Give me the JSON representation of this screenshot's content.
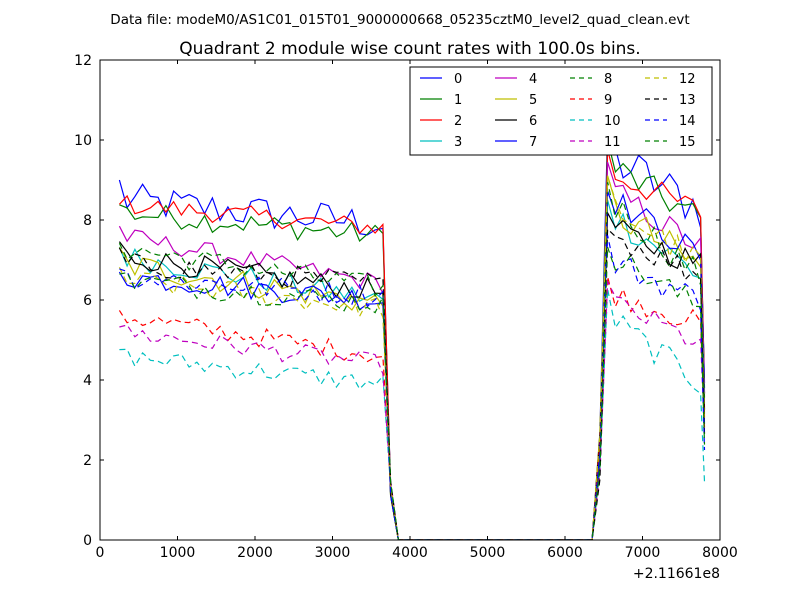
{
  "chart_data": {
    "type": "line",
    "suptitle": "Data file: modeM0/AS1C01_015T01_9000000668_05235cztM0_level2_quad_clean.evt",
    "title": "Quadrant 2 module wise count rates with 100.0s bins.",
    "xlabel": "",
    "ylabel": "",
    "xlim": [
      0,
      8000
    ],
    "ylim": [
      0,
      12
    ],
    "x_offset_label": "+2.11661e8",
    "x_ticks": [
      0,
      1000,
      2000,
      3000,
      4000,
      5000,
      6000,
      7000,
      8000
    ],
    "x_tick_labels": [
      "0",
      "1000",
      "2000",
      "3000",
      "4000",
      "5000",
      "6000",
      "7000",
      "8000"
    ],
    "y_ticks": [
      0,
      2,
      4,
      6,
      8,
      10,
      12
    ],
    "y_tick_labels": [
      "0",
      "2",
      "4",
      "6",
      "8",
      "10",
      "12"
    ],
    "grid": false,
    "legend_position": "top-right",
    "legend_columns": 4,
    "segments": [
      {
        "x_start": 250,
        "x_end": 3650,
        "step": 100
      },
      {
        "x_start": 6550,
        "x_end": 7750,
        "step": 100
      }
    ],
    "drop_edges": {
      "first_end": 3750,
      "gap_start": 3850,
      "gap_end": 6350,
      "second_start": 6450
    },
    "series": [
      {
        "name": "0",
        "color": "#0000ff",
        "dash": "solid",
        "base1": 8.5,
        "end1": 7.9,
        "noise": 0.45,
        "base2": 9.6,
        "end2": 8.3,
        "amp": 0.6
      },
      {
        "name": "1",
        "color": "#008000",
        "dash": "solid",
        "base1": 8.2,
        "end1": 7.6,
        "noise": 0.3,
        "base2": 9.4,
        "end2": 8.0,
        "amp": 0.4
      },
      {
        "name": "2",
        "color": "#ff0000",
        "dash": "solid",
        "base1": 8.4,
        "end1": 7.8,
        "noise": 0.25,
        "base2": 9.2,
        "end2": 8.2,
        "amp": 0.35
      },
      {
        "name": "3",
        "color": "#00bfbf",
        "dash": "solid",
        "base1": 7.1,
        "end1": 6.0,
        "noise": 0.3,
        "base2": 8.2,
        "end2": 6.6,
        "amp": 0.4
      },
      {
        "name": "4",
        "color": "#bf00bf",
        "dash": "solid",
        "base1": 7.6,
        "end1": 6.4,
        "noise": 0.25,
        "base2": 8.8,
        "end2": 7.3,
        "amp": 0.35
      },
      {
        "name": "5",
        "color": "#bfbf00",
        "dash": "solid",
        "base1": 6.9,
        "end1": 5.9,
        "noise": 0.35,
        "base2": 8.3,
        "end2": 6.8,
        "amp": 0.45
      },
      {
        "name": "6",
        "color": "#000000",
        "dash": "solid",
        "base1": 7.1,
        "end1": 6.2,
        "noise": 0.3,
        "base2": 7.8,
        "end2": 6.9,
        "amp": 0.35
      },
      {
        "name": "7",
        "color": "#0000ff",
        "dash": "solid",
        "base1": 6.6,
        "end1": 6.0,
        "noise": 0.3,
        "base2": 8.6,
        "end2": 7.1,
        "amp": 0.35
      },
      {
        "name": "8",
        "color": "#008000",
        "dash": "dashed",
        "base1": 7.3,
        "end1": 6.3,
        "noise": 0.3,
        "base2": 8.5,
        "end2": 6.6,
        "amp": 0.4
      },
      {
        "name": "9",
        "color": "#ff0000",
        "dash": "dashed",
        "base1": 5.6,
        "end1": 4.6,
        "noise": 0.25,
        "base2": 6.2,
        "end2": 5.4,
        "amp": 0.3
      },
      {
        "name": "10",
        "color": "#00bfbf",
        "dash": "dashed",
        "base1": 4.6,
        "end1": 3.9,
        "noise": 0.25,
        "base2": 5.6,
        "end2": 3.9,
        "amp": 0.35
      },
      {
        "name": "11",
        "color": "#bf00bf",
        "dash": "dashed",
        "base1": 5.2,
        "end1": 4.4,
        "noise": 0.25,
        "base2": 6.0,
        "end2": 4.9,
        "amp": 0.3
      },
      {
        "name": "12",
        "color": "#bfbf00",
        "dash": "dashed",
        "base1": 6.5,
        "end1": 5.8,
        "noise": 0.3,
        "base2": 8.4,
        "end2": 6.9,
        "amp": 0.4
      },
      {
        "name": "13",
        "color": "#000000",
        "dash": "dashed",
        "base1": 6.9,
        "end1": 6.4,
        "noise": 0.3,
        "base2": 7.7,
        "end2": 6.6,
        "amp": 0.35
      },
      {
        "name": "14",
        "color": "#0000ff",
        "dash": "dashed",
        "base1": 6.6,
        "end1": 6.1,
        "noise": 0.3,
        "base2": 7.0,
        "end2": 6.0,
        "amp": 0.35
      },
      {
        "name": "15",
        "color": "#008000",
        "dash": "dashed",
        "base1": 6.5,
        "end1": 5.9,
        "noise": 0.3,
        "base2": 7.2,
        "end2": 5.8,
        "amp": 0.35
      }
    ]
  }
}
